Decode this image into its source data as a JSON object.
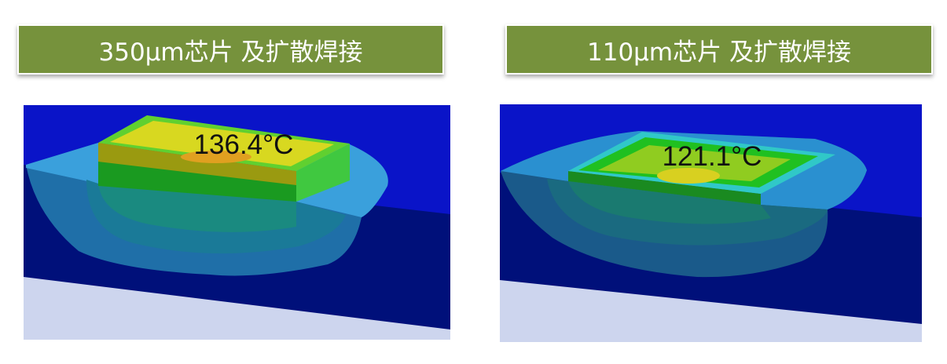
{
  "panels": [
    {
      "title": "350μm芯片 及扩散焊接",
      "max_temperature": "136.4°C"
    },
    {
      "title": "110μm芯片 及扩散焊接",
      "max_temperature": "121.1°C"
    }
  ],
  "colors": {
    "banner": "#76923c",
    "background_blue": "#0a14c8",
    "substrate_navy": "#00107a",
    "base_gray": "#cdd5ee"
  }
}
